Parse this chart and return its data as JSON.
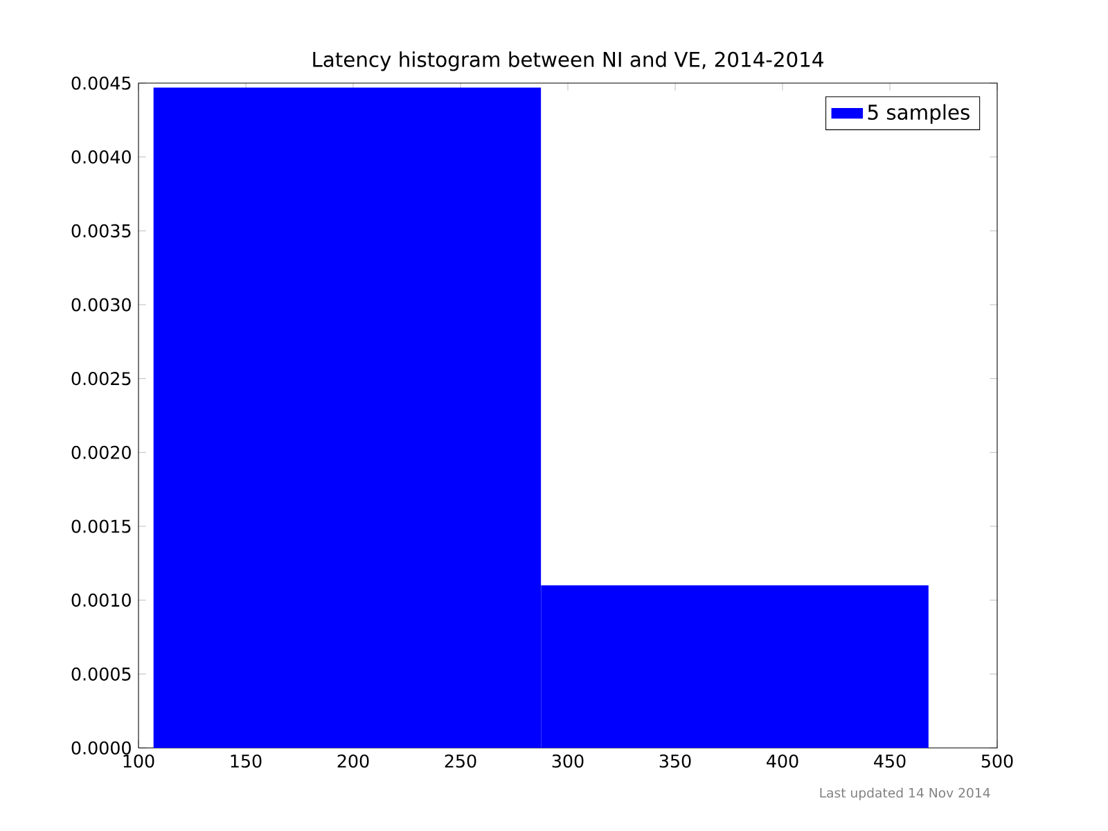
{
  "chart_data": {
    "type": "histogram",
    "title": "Latency histogram between NI and VE, 2014-2014",
    "bins": [
      107,
      287.5,
      468
    ],
    "series": [
      {
        "name": "5 samples",
        "color": "#0000ff",
        "values": [
          0.00447,
          0.0011
        ]
      }
    ],
    "xlim": [
      100,
      500
    ],
    "xticks": [
      100,
      150,
      200,
      250,
      300,
      350,
      400,
      450,
      500
    ],
    "ylim": [
      0,
      0.0045
    ],
    "yticks": [
      {
        "value": 0,
        "label": "0.0000"
      },
      {
        "value": 0.0005,
        "label": "0.0005"
      },
      {
        "value": 0.001,
        "label": "0.0010"
      },
      {
        "value": 0.0015,
        "label": "0.0015"
      },
      {
        "value": 0.002,
        "label": "0.0020"
      },
      {
        "value": 0.0025,
        "label": "0.0025"
      },
      {
        "value": 0.003,
        "label": "0.0030"
      },
      {
        "value": 0.0035,
        "label": "0.0035"
      },
      {
        "value": 0.004,
        "label": "0.0040"
      },
      {
        "value": 0.0045,
        "label": "0.0045"
      }
    ],
    "legend": "top right",
    "grid": false,
    "annotations": [
      "Last updated 14 Nov 2014"
    ]
  }
}
